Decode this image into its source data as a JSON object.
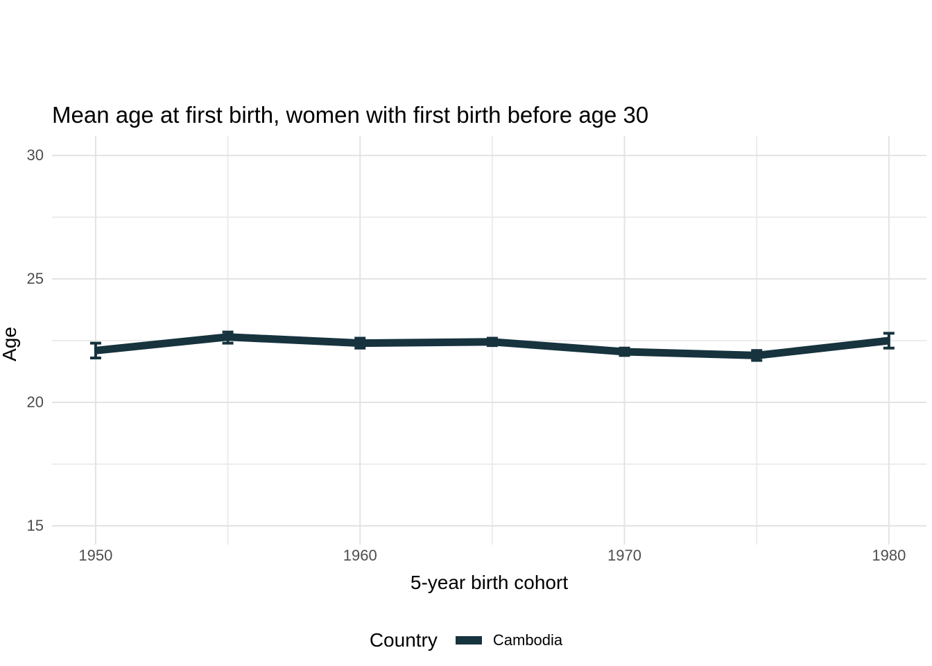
{
  "chart_data": {
    "type": "line",
    "title": "Mean age at first birth, women with first birth before age 30",
    "xlabel": "5-year birth cohort",
    "ylabel": "Age",
    "legend_title": "Country",
    "legend_position": "bottom",
    "grid": true,
    "error_bars": true,
    "x": [
      1950,
      1955,
      1960,
      1965,
      1970,
      1975,
      1980
    ],
    "series": [
      {
        "name": "Cambodia",
        "color": "#16333e",
        "values": [
          22.1,
          22.65,
          22.4,
          22.45,
          22.05,
          21.9,
          22.5
        ],
        "ci_low": [
          21.8,
          22.4,
          22.2,
          22.3,
          21.9,
          21.7,
          22.2
        ],
        "ci_high": [
          22.4,
          22.85,
          22.6,
          22.6,
          22.2,
          22.1,
          22.8
        ]
      }
    ],
    "x_ticks": [
      1950,
      1960,
      1970,
      1980
    ],
    "x_minor_ticks": [
      1955,
      1965,
      1975
    ],
    "y_ticks": [
      15,
      20,
      25,
      30
    ],
    "y_minor_ticks": [
      17.5,
      22.5,
      27.5
    ],
    "xlim": [
      1948.35,
      1981.42
    ],
    "ylim": [
      14.24,
      30.79
    ]
  },
  "style": {
    "background": "#ffffff",
    "line_color": "#16333e",
    "grid_major_color": "#e3e3e3",
    "grid_minor_color": "#ececec",
    "tick_label_color": "#4d4d4d",
    "title_color": "#000000"
  }
}
